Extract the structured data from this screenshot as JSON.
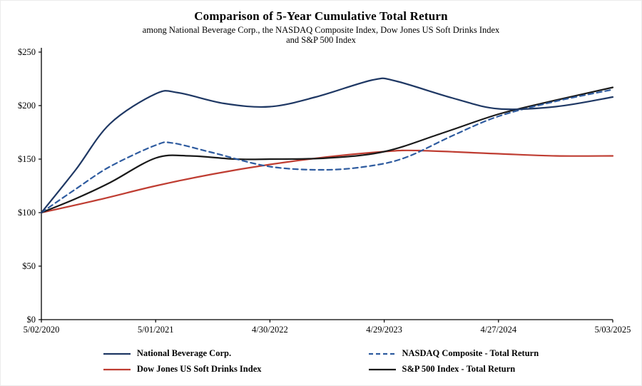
{
  "title": "Comparison of 5-Year Cumulative Total Return",
  "subtitle_line1": "among National Beverage Corp., the NASDAQ Composite Index, Dow Jones US Soft Drinks Index",
  "subtitle_line2": "and S&P 500 Index",
  "chart_data": {
    "type": "line",
    "title": "Comparison of 5-Year Cumulative Total Return",
    "subtitle": "among National Beverage Corp., the NASDAQ Composite Index, Dow Jones US Soft Drinks Index and S&P 500 Index",
    "xlabel": "",
    "ylabel": "",
    "xlim": [
      0,
      5
    ],
    "ylim": [
      0,
      250
    ],
    "grid": false,
    "legend_position": "bottom",
    "axis_color": "#000000",
    "x_ticks": [
      "5/02/2020",
      "5/01/2021",
      "4/30/2022",
      "4/29/2023",
      "4/27/2024",
      "5/03/2025"
    ],
    "x_tick_positions": [
      0,
      1,
      2,
      3,
      4,
      5
    ],
    "y_ticks": [
      "$0",
      "$50",
      "$100",
      "$150",
      "$200",
      "$250"
    ],
    "y_tick_values": [
      0,
      50,
      100,
      150,
      200,
      250
    ],
    "series": [
      {
        "name": "Dow Jones US Soft Drinks Index",
        "color": "#bf3d32",
        "dashed": false,
        "points": [
          [
            0,
            100
          ],
          [
            0.5,
            112
          ],
          [
            1,
            125
          ],
          [
            1.5,
            136
          ],
          [
            2,
            145
          ],
          [
            2.5,
            152
          ],
          [
            3,
            157
          ],
          [
            3.3,
            158
          ],
          [
            4,
            155
          ],
          [
            4.5,
            153
          ],
          [
            5,
            153
          ]
        ]
      },
      {
        "name": "S&P 500 Index - Total Return",
        "color": "#1a1a1a",
        "dashed": false,
        "points": [
          [
            0,
            100
          ],
          [
            0.3,
            113
          ],
          [
            0.6,
            128
          ],
          [
            1,
            151
          ],
          [
            1.3,
            153
          ],
          [
            1.7,
            150
          ],
          [
            2,
            150
          ],
          [
            2.5,
            151
          ],
          [
            3,
            157
          ],
          [
            3.5,
            174
          ],
          [
            4,
            192
          ],
          [
            4.5,
            205
          ],
          [
            5,
            217
          ]
        ]
      },
      {
        "name": "NASDAQ Composite - Total Return",
        "color": "#2e5b9f",
        "dashed": true,
        "points": [
          [
            0,
            100
          ],
          [
            0.3,
            122
          ],
          [
            0.6,
            143
          ],
          [
            1,
            163
          ],
          [
            1.15,
            165
          ],
          [
            1.5,
            156
          ],
          [
            2,
            143
          ],
          [
            2.5,
            140
          ],
          [
            2.9,
            144
          ],
          [
            3.2,
            152
          ],
          [
            3.6,
            172
          ],
          [
            4,
            190
          ],
          [
            4.5,
            204
          ],
          [
            5,
            215
          ]
        ]
      },
      {
        "name": "National Beverage Corp.",
        "color": "#1f3864",
        "dashed": false,
        "points": [
          [
            0,
            100
          ],
          [
            0.3,
            140
          ],
          [
            0.6,
            183
          ],
          [
            1,
            211
          ],
          [
            1.2,
            212
          ],
          [
            1.6,
            202
          ],
          [
            2,
            199
          ],
          [
            2.4,
            208
          ],
          [
            2.9,
            224
          ],
          [
            3.1,
            223
          ],
          [
            3.6,
            207
          ],
          [
            4,
            197
          ],
          [
            4.5,
            199
          ],
          [
            5,
            208
          ]
        ]
      }
    ]
  }
}
